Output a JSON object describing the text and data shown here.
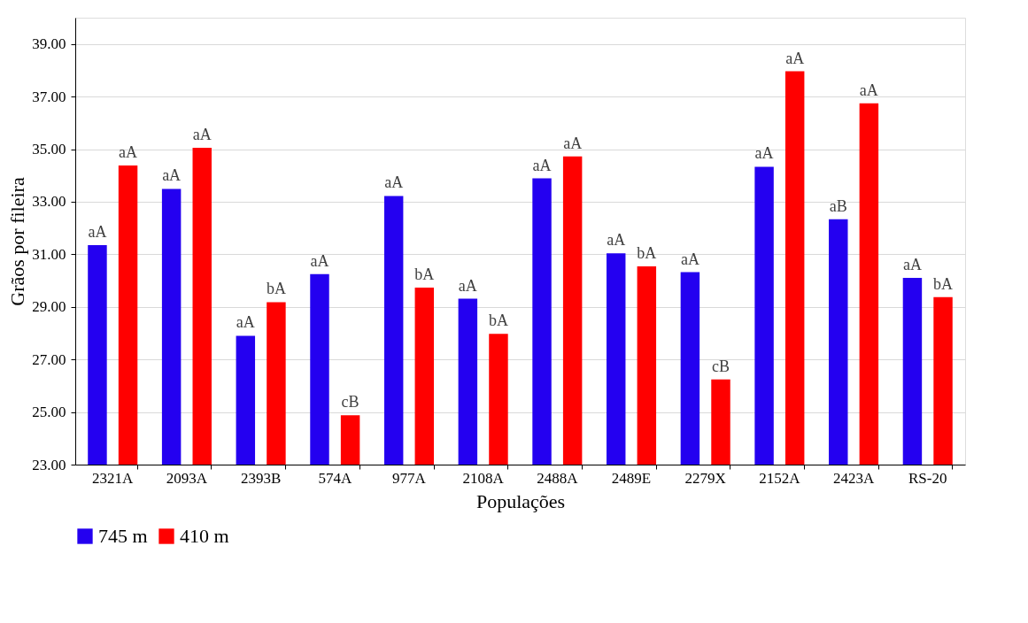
{
  "chart_data": {
    "type": "bar",
    "xlabel": "Populações",
    "ylabel": "Grãos por fileira",
    "categories": [
      "2321A",
      "2093A",
      "2393B",
      "574A",
      "977A",
      "2108A",
      "2488A",
      "2489E",
      "2279X",
      "2152A",
      "2423A",
      "RS-20"
    ],
    "series": [
      {
        "name": "745 m",
        "color": "#2400f0",
        "values": [
          31.35,
          33.49,
          27.9,
          30.25,
          33.22,
          29.31,
          33.89,
          31.04,
          30.32,
          34.33,
          32.33,
          30.1
        ],
        "value_labels": [
          "aA",
          "aA",
          "aA",
          "aA",
          "aA",
          "aA",
          "aA",
          "aA",
          "aA",
          "aA",
          "aB",
          "aA"
        ]
      },
      {
        "name": "410 m",
        "color": "#ff0000",
        "values": [
          34.38,
          35.05,
          29.18,
          24.88,
          29.73,
          27.97,
          34.72,
          30.54,
          26.24,
          37.96,
          36.74,
          29.37
        ],
        "value_labels": [
          "aA",
          "aA",
          "bA",
          "cB",
          "bA",
          "bA",
          "aA",
          "bA",
          "cB",
          "aA",
          "aA",
          "bA"
        ]
      }
    ],
    "ylim": [
      23,
      40
    ],
    "yticks": [
      {
        "value": 23,
        "label": "23.00"
      },
      {
        "value": 25,
        "label": "25.00"
      },
      {
        "value": 27,
        "label": "27.00"
      },
      {
        "value": 29,
        "label": "29.00"
      },
      {
        "value": 31,
        "label": "31.00"
      },
      {
        "value": 33,
        "label": "33.00"
      },
      {
        "value": 35,
        "label": "35.00"
      },
      {
        "value": 37,
        "label": "37.00"
      },
      {
        "value": 39,
        "label": "39.00"
      }
    ],
    "grid": "y",
    "legend": "bottom"
  }
}
